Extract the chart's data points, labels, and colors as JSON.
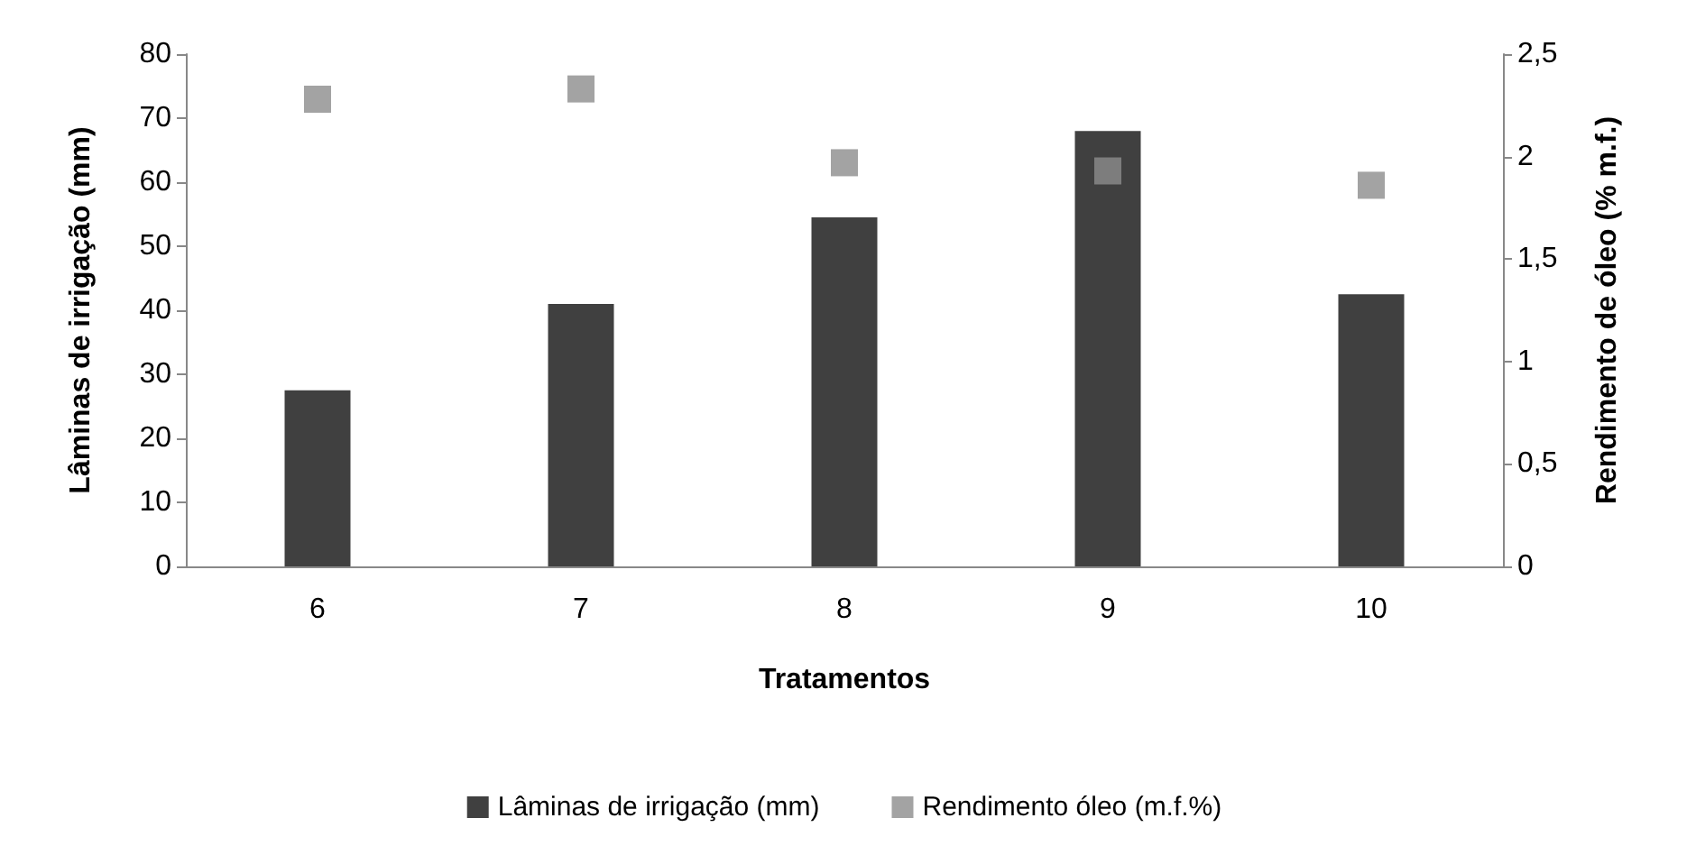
{
  "chart_data": {
    "type": "bar",
    "xlabel": "Tratamentos",
    "ylabel": "Lâminas de irrigação (mm)",
    "y2label": "Rendimento de óleo (% m.f.)",
    "categories": [
      "6",
      "7",
      "8",
      "9",
      "10"
    ],
    "series": [
      {
        "name": "Lâminas de irrigação (mm)",
        "color": "#404040",
        "values": [
          27.5,
          41,
          54.5,
          68,
          42.5
        ]
      },
      {
        "name": "Rendimento óleo (m.f.%)",
        "type": "scatter",
        "axis": "y2",
        "color": "#8c8c8c",
        "values": [
          2.28,
          2.33,
          1.97,
          1.93,
          1.86
        ]
      }
    ],
    "ylim": [
      0,
      80
    ],
    "yticks": [
      0,
      10,
      20,
      30,
      40,
      50,
      60,
      70,
      80
    ],
    "y2lim": [
      0,
      2.5
    ],
    "y2ticks": [
      0,
      {
        "value": 0.5,
        "label": "0,5"
      },
      1,
      {
        "value": 1.5,
        "label": "1,5"
      },
      2,
      {
        "value": 2.5,
        "label": "2,5"
      }
    ],
    "marker": "square",
    "grid": false,
    "legend": "bottom"
  }
}
